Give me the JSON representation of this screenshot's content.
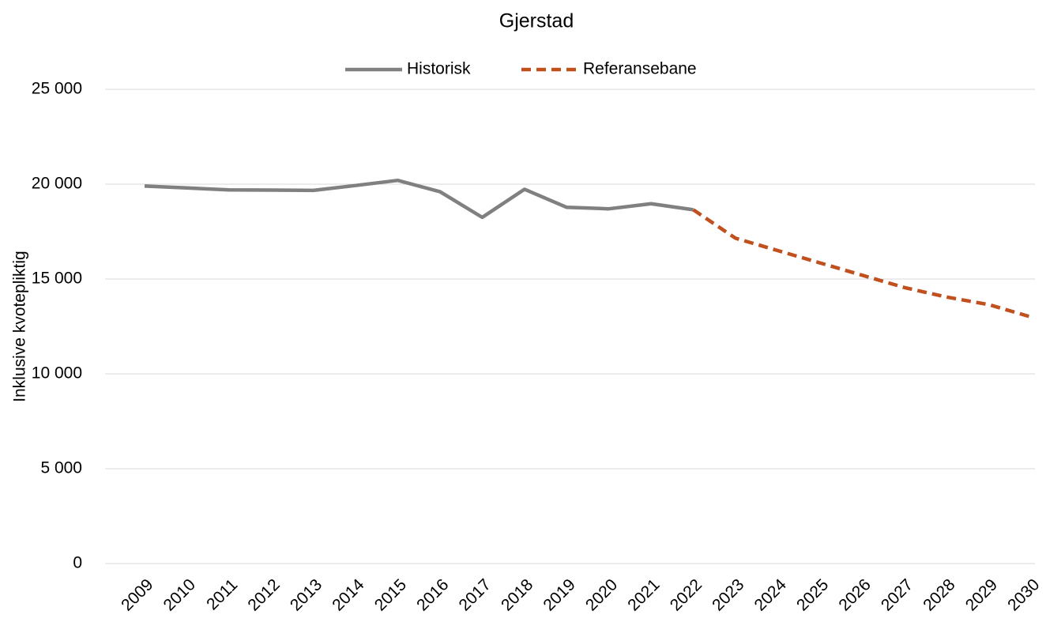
{
  "chart_data": {
    "type": "line",
    "title": "Gjerstad",
    "y_label": "Inklusive kvotepliktig",
    "categories": [
      "2009",
      "2010",
      "2011",
      "2012",
      "2013",
      "2014",
      "2015",
      "2016",
      "2017",
      "2018",
      "2019",
      "2020",
      "2021",
      "2022",
      "2023",
      "2024",
      "2025",
      "2026",
      "2027",
      "2028",
      "2029",
      "2030"
    ],
    "series": [
      {
        "name": "Historisk",
        "color": "#808080",
        "dash": false,
        "values": [
          19900,
          19800,
          19700,
          19690,
          19670,
          19930,
          20200,
          19600,
          18250,
          19730,
          18780,
          18700,
          18970,
          18650,
          null,
          null,
          null,
          null,
          null,
          null,
          null,
          null
        ]
      },
      {
        "name": "Referansebane",
        "color": "#c0501e",
        "dash": true,
        "values": [
          null,
          null,
          null,
          null,
          null,
          null,
          null,
          null,
          null,
          null,
          null,
          null,
          null,
          18650,
          17150,
          16500,
          15850,
          15200,
          14550,
          14050,
          13650,
          13000
        ]
      }
    ],
    "ylim": [
      0,
      25000
    ],
    "yticks": [
      0,
      {
        "value": 5000,
        "label": "5 000"
      },
      {
        "value": 10000,
        "label": "10 000"
      },
      {
        "value": 15000,
        "label": "15 000"
      },
      {
        "value": 20000,
        "label": "20 000"
      },
      {
        "value": 25000,
        "label": "25 000"
      }
    ],
    "grid": true,
    "legend": "top"
  }
}
